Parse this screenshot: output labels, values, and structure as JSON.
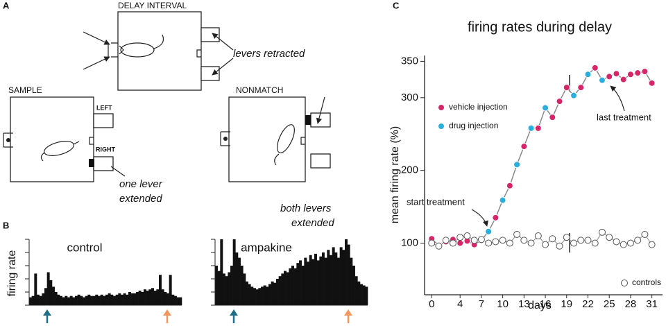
{
  "panel_labels": [
    "A",
    "B",
    "C"
  ],
  "panel_a": {
    "delay_title": "DELAY INTERVAL",
    "delay_note": "levers retracted",
    "sample_title": "SAMPLE",
    "left": "LEFT",
    "right": "RIGHT",
    "sample_note": [
      "one lever",
      "extended"
    ],
    "nonmatch_title": "NONMATCH",
    "nonmatch_note": [
      "both levers",
      "extended"
    ]
  },
  "chart_data": [
    {
      "type": "bar",
      "title": "control",
      "ylabel": "firing rate",
      "color": "#111111",
      "values": [
        0.6,
        0.7,
        2.4,
        0.8,
        0.7,
        0.9,
        1.3,
        2.5,
        1.9,
        1.4,
        1.0,
        0.8,
        0.7,
        0.6,
        0.7,
        0.6,
        0.7,
        0.6,
        0.7,
        0.8,
        0.7,
        0.6,
        0.7,
        0.8,
        0.7,
        0.7,
        0.8,
        0.7,
        0.8,
        0.7,
        0.8,
        0.9,
        0.8,
        0.7,
        0.8,
        0.9,
        0.8,
        0.9,
        0.8,
        1.0,
        0.9,
        0.9,
        1.0,
        1.1,
        1.0,
        1.2,
        1.1,
        1.2,
        1.3,
        1.1,
        1.2,
        2.3,
        1.2,
        1.0,
        0.9,
        2.3,
        0.8,
        0.7,
        0.6,
        0.6
      ],
      "ylim": [
        0,
        5
      ],
      "yticks": [
        0,
        1,
        2,
        3,
        4,
        5
      ]
    },
    {
      "type": "bar",
      "title": "ampakine",
      "color": "#111111",
      "values": [
        3.0,
        2.6,
        5.0,
        2.4,
        2.2,
        2.5,
        3.0,
        5.0,
        4.0,
        3.6,
        3.0,
        2.4,
        1.8,
        1.6,
        1.4,
        1.3,
        1.2,
        1.3,
        1.4,
        1.5,
        1.4,
        1.6,
        1.8,
        1.7,
        2.0,
        2.2,
        2.4,
        2.6,
        2.5,
        2.8,
        3.0,
        2.8,
        3.2,
        3.4,
        3.0,
        3.6,
        3.3,
        3.8,
        3.5,
        3.9,
        3.4,
        3.7,
        4.0,
        3.6,
        4.2,
        3.8,
        4.4,
        4.0,
        3.6,
        4.4,
        4.2,
        5.0,
        4.6,
        3.6,
        3.0,
        2.2,
        1.8,
        1.6,
        1.5,
        1.4
      ],
      "ylim": [
        0,
        5
      ],
      "yticks": [
        0,
        1,
        2,
        3,
        4,
        5
      ]
    },
    {
      "type": "line",
      "title": "firing rates during delay",
      "xlabel": "days",
      "ylabel": "mean firing rate (%)",
      "x": [
        0,
        1,
        2,
        3,
        4,
        5,
        6,
        7,
        8,
        9,
        10,
        11,
        12,
        13,
        14,
        15,
        16,
        17,
        18,
        19,
        20,
        21,
        22,
        23,
        24,
        25,
        26,
        27,
        28,
        29,
        30,
        31
      ],
      "line_color": "#8a8a8a",
      "series": [
        {
          "name": "vehicle injection",
          "color": "#d6266a",
          "values": [
            106,
            97,
            102,
            105,
            100,
            103,
            98,
            104,
            null,
            135,
            null,
            179,
            null,
            233,
            null,
            258,
            null,
            273,
            295,
            314,
            null,
            314,
            null,
            341,
            null,
            329,
            333,
            325,
            332,
            334,
            336,
            320
          ]
        },
        {
          "name": "drug injection",
          "color": "#2aaede",
          "values": [
            null,
            null,
            null,
            null,
            null,
            null,
            null,
            null,
            116,
            null,
            159,
            null,
            208,
            null,
            258,
            null,
            286,
            null,
            null,
            null,
            303,
            null,
            332,
            null,
            324,
            null,
            null,
            null,
            null,
            null,
            null,
            null
          ]
        },
        {
          "name": "controls",
          "color": "#ffffff",
          "values": [
            100,
            96,
            104,
            100,
            108,
            110,
            104,
            105,
            100,
            102,
            104,
            100,
            112,
            104,
            100,
            110,
            98,
            106,
            96,
            108,
            100,
            104,
            104,
            100,
            115,
            108,
            102,
            98,
            100,
            104,
            112,
            98
          ]
        }
      ],
      "xlim": [
        -1,
        32.5
      ],
      "xticks": [
        0,
        4,
        7,
        10,
        13,
        16,
        19,
        22,
        25,
        28,
        31
      ],
      "ylim": [
        29,
        358
      ],
      "yticks": [
        100,
        200,
        300,
        350
      ],
      "annotations": [
        "start treatment",
        "last treatment"
      ]
    }
  ]
}
